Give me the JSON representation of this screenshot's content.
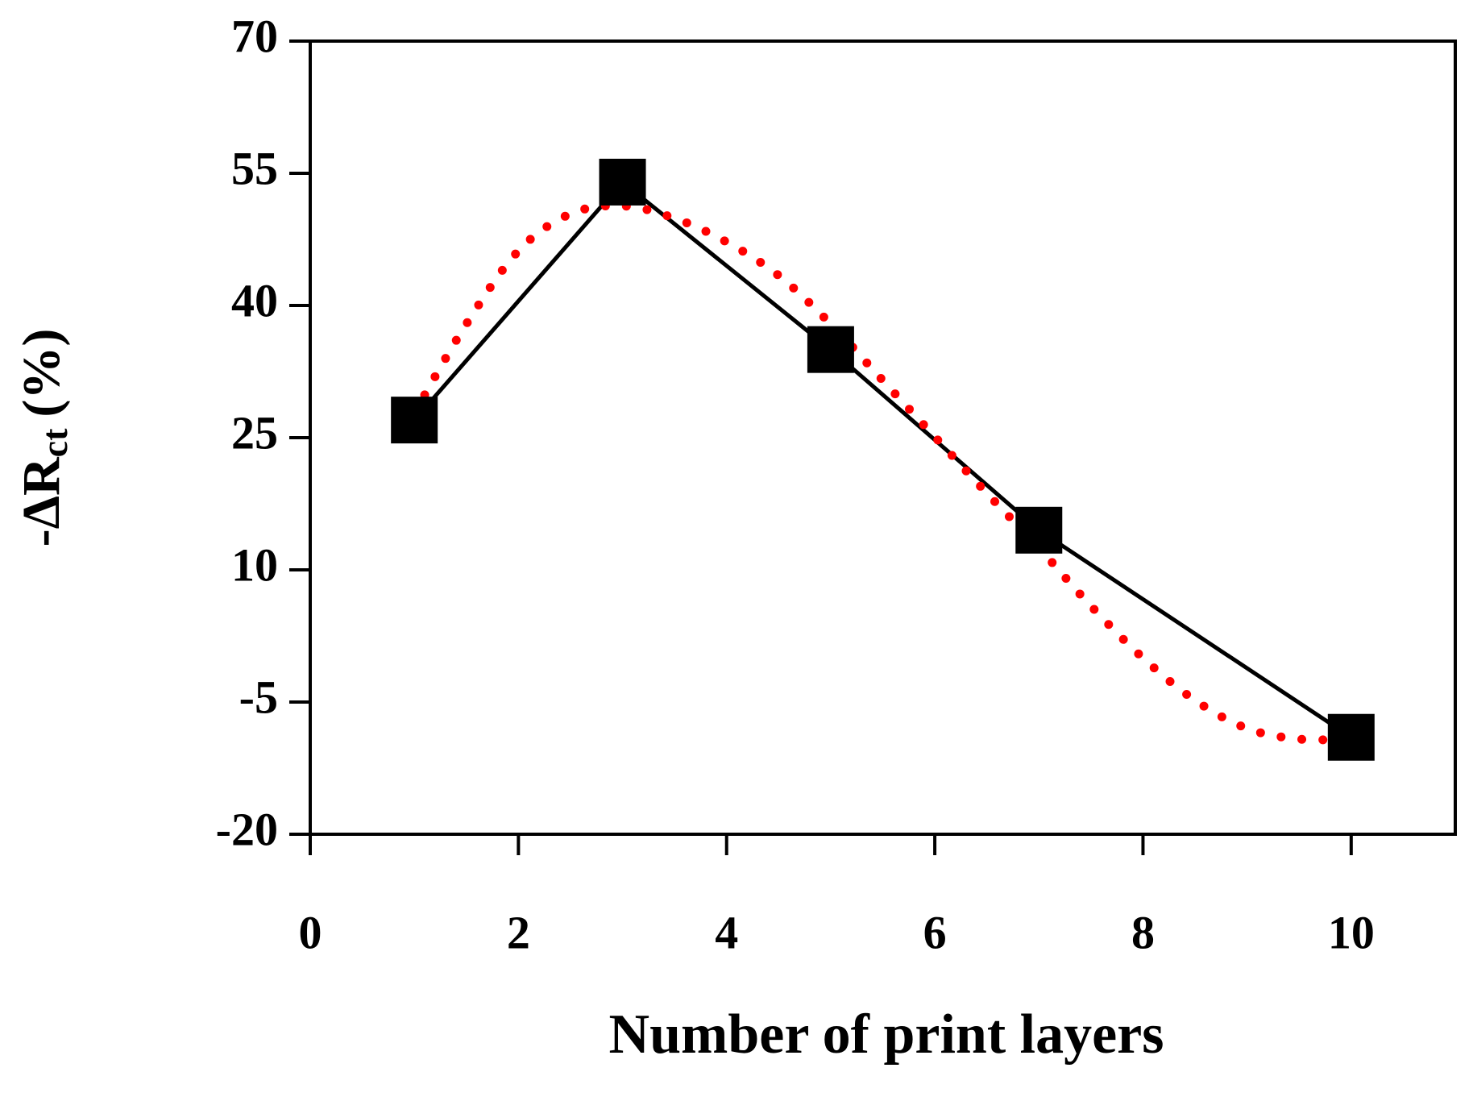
{
  "chart_data": {
    "type": "line",
    "xlabel": "Number of print layers",
    "ylabel": "-ΔR",
    "ylabel_sub": "ct",
    "ylabel_suffix": "(%)",
    "xlim": [
      0,
      11
    ],
    "xticks": [
      0,
      2,
      4,
      6,
      8,
      10
    ],
    "ylim": [
      -20,
      70
    ],
    "yticks": [
      -20,
      -5,
      10,
      25,
      40,
      55,
      70
    ],
    "series": [
      {
        "color": "#000000",
        "marker": "square",
        "x": [
          1,
          3,
          5,
          7,
          10
        ],
        "values": [
          27,
          54,
          35,
          14.5,
          -9
        ]
      },
      {
        "color": "#ff0000",
        "style": "dotted",
        "x": [
          1,
          1.5,
          2,
          2.5,
          3,
          3.5,
          4,
          4.5,
          5,
          5.5,
          6,
          6.5,
          7,
          7.5,
          8,
          8.5,
          9,
          9.5,
          10
        ],
        "values": [
          27.8,
          37.9,
          46.2,
          50.4,
          51.3,
          49.9,
          47.2,
          43.4,
          37.9,
          31.5,
          25.1,
          18.7,
          12.5,
          5.9,
          0,
          -4.8,
          -8,
          -9.2,
          -9.2
        ]
      }
    ]
  }
}
